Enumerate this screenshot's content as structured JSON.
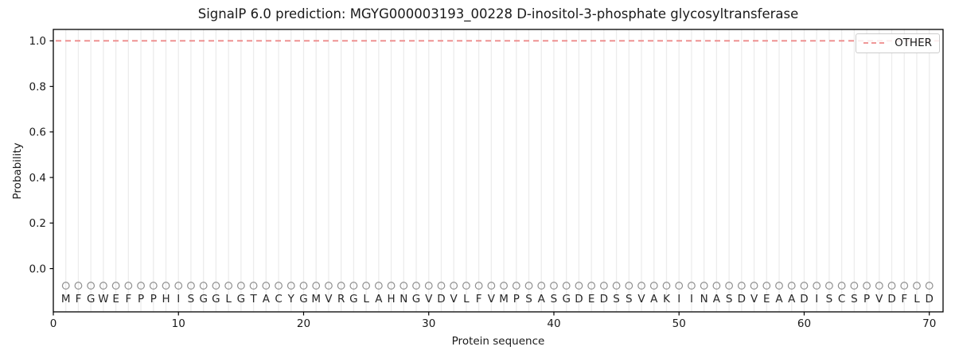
{
  "chart_data": {
    "type": "line",
    "title": "SignalP 6.0 prediction: MGYG000003193_00228 D-inositol-3-phosphate glycosyltransferase",
    "xlabel": "Protein sequence",
    "ylabel": "Probability",
    "xlim": [
      0,
      71.1
    ],
    "ylim": [
      -0.19,
      1.05
    ],
    "x_ticks": [
      0,
      10,
      20,
      30,
      40,
      50,
      60,
      70
    ],
    "y_ticks": [
      0.0,
      0.2,
      0.4,
      0.6,
      0.8,
      1.0
    ],
    "grid": "light vertical gridline at every residue position",
    "legend_position": "upper right",
    "sequence": [
      "M",
      "F",
      "G",
      "W",
      "E",
      "F",
      "P",
      "P",
      "H",
      "I",
      "S",
      "G",
      "G",
      "L",
      "G",
      "T",
      "A",
      "C",
      "Y",
      "G",
      "M",
      "V",
      "R",
      "G",
      "L",
      "A",
      "H",
      "N",
      "G",
      "V",
      "D",
      "V",
      "L",
      "F",
      "V",
      "M",
      "P",
      "S",
      "A",
      "S",
      "G",
      "D",
      "E",
      "D",
      "S",
      "S",
      "V",
      "A",
      "K",
      "I",
      "I",
      "N",
      "A",
      "S",
      "D",
      "V",
      "E",
      "A",
      "A",
      "D",
      "I",
      "S",
      "C",
      "S",
      "P",
      "V",
      "D",
      "F",
      "L",
      "D"
    ],
    "series": [
      {
        "name": "OTHER",
        "line_style": "dashed",
        "color": "#ee8a8a",
        "x_note": "residue positions 1-70",
        "values": [
          1.0,
          1.0,
          1.0,
          1.0,
          1.0,
          1.0,
          1.0,
          1.0,
          1.0,
          1.0,
          1.0,
          1.0,
          1.0,
          1.0,
          1.0,
          1.0,
          1.0,
          1.0,
          1.0,
          1.0,
          1.0,
          1.0,
          1.0,
          1.0,
          1.0,
          1.0,
          1.0,
          1.0,
          1.0,
          1.0,
          1.0,
          1.0,
          1.0,
          1.0,
          1.0,
          1.0,
          1.0,
          1.0,
          1.0,
          1.0,
          1.0,
          1.0,
          1.0,
          1.0,
          1.0,
          1.0,
          1.0,
          1.0,
          1.0,
          1.0,
          1.0,
          1.0,
          1.0,
          1.0,
          1.0,
          1.0,
          1.0,
          1.0,
          1.0,
          1.0,
          1.0,
          1.0,
          1.0,
          1.0,
          1.0,
          1.0,
          1.0,
          1.0,
          1.0,
          1.0
        ]
      }
    ],
    "position_markers": {
      "shape": "open-circle",
      "color": "#8f8f8f",
      "y": -0.075
    }
  },
  "colors": {
    "grid": "#ececec",
    "spine": "#000000",
    "text": "#1a1a1a",
    "sequence_letters": "#262626"
  }
}
